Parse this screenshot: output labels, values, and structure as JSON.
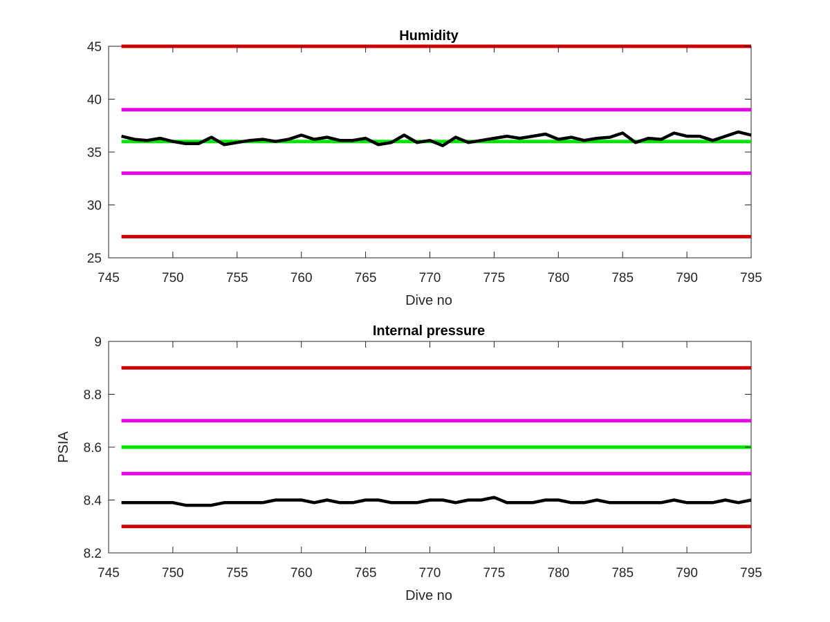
{
  "chart_data": [
    {
      "type": "line",
      "title": "Humidity",
      "xlabel": "Dive no",
      "ylabel": "",
      "xlim": [
        745,
        795
      ],
      "ylim": [
        25,
        45
      ],
      "xticks": [
        745,
        750,
        755,
        760,
        765,
        770,
        775,
        780,
        785,
        790,
        795
      ],
      "yticks": [
        25,
        30,
        35,
        40,
        45
      ],
      "grid": false,
      "reference_lines": [
        {
          "y": 45,
          "color": "#cc0000"
        },
        {
          "y": 39,
          "color": "#e600e6"
        },
        {
          "y": 36,
          "color": "#00e600"
        },
        {
          "y": 33,
          "color": "#e600e6"
        },
        {
          "y": 27,
          "color": "#cc0000"
        }
      ],
      "series": [
        {
          "color": "#000000",
          "x": [
            746,
            747,
            748,
            749,
            750,
            751,
            752,
            753,
            754,
            755,
            756,
            757,
            758,
            759,
            760,
            761,
            762,
            763,
            764,
            765,
            766,
            767,
            768,
            769,
            770,
            771,
            772,
            773,
            774,
            775,
            776,
            777,
            778,
            779,
            780,
            781,
            782,
            783,
            784,
            785,
            786,
            787,
            788,
            789,
            790,
            791,
            792,
            793,
            794,
            795
          ],
          "values": [
            36.5,
            36.2,
            36.1,
            36.3,
            36.0,
            35.8,
            35.8,
            36.4,
            35.7,
            35.9,
            36.1,
            36.2,
            36.0,
            36.2,
            36.6,
            36.2,
            36.4,
            36.1,
            36.1,
            36.3,
            35.7,
            35.9,
            36.6,
            35.9,
            36.1,
            35.6,
            36.4,
            35.9,
            36.1,
            36.3,
            36.5,
            36.3,
            36.5,
            36.7,
            36.2,
            36.4,
            36.1,
            36.3,
            36.4,
            36.8,
            35.9,
            36.3,
            36.2,
            36.8,
            36.5,
            36.5,
            36.1,
            36.5,
            36.9,
            36.6
          ]
        }
      ]
    },
    {
      "type": "line",
      "title": "Internal pressure",
      "xlabel": "Dive no",
      "ylabel": "PSIA",
      "xlim": [
        745,
        795
      ],
      "ylim": [
        8.2,
        9
      ],
      "xticks": [
        745,
        750,
        755,
        760,
        765,
        770,
        775,
        780,
        785,
        790,
        795
      ],
      "yticks": [
        8.2,
        8.4,
        8.6,
        8.8,
        9
      ],
      "grid": false,
      "reference_lines": [
        {
          "y": 8.9,
          "color": "#cc0000"
        },
        {
          "y": 8.7,
          "color": "#e600e6"
        },
        {
          "y": 8.6,
          "color": "#00e600"
        },
        {
          "y": 8.5,
          "color": "#e600e6"
        },
        {
          "y": 8.3,
          "color": "#cc0000"
        }
      ],
      "series": [
        {
          "color": "#000000",
          "x": [
            746,
            747,
            748,
            749,
            750,
            751,
            752,
            753,
            754,
            755,
            756,
            757,
            758,
            759,
            760,
            761,
            762,
            763,
            764,
            765,
            766,
            767,
            768,
            769,
            770,
            771,
            772,
            773,
            774,
            775,
            776,
            777,
            778,
            779,
            780,
            781,
            782,
            783,
            784,
            785,
            786,
            787,
            788,
            789,
            790,
            791,
            792,
            793,
            794,
            795
          ],
          "values": [
            8.39,
            8.39,
            8.39,
            8.39,
            8.39,
            8.38,
            8.38,
            8.38,
            8.39,
            8.39,
            8.39,
            8.39,
            8.4,
            8.4,
            8.4,
            8.39,
            8.4,
            8.39,
            8.39,
            8.4,
            8.4,
            8.39,
            8.39,
            8.39,
            8.4,
            8.4,
            8.39,
            8.4,
            8.4,
            8.41,
            8.39,
            8.39,
            8.39,
            8.4,
            8.4,
            8.39,
            8.39,
            8.4,
            8.39,
            8.39,
            8.39,
            8.39,
            8.39,
            8.4,
            8.39,
            8.39,
            8.39,
            8.4,
            8.39,
            8.4
          ]
        }
      ]
    }
  ]
}
